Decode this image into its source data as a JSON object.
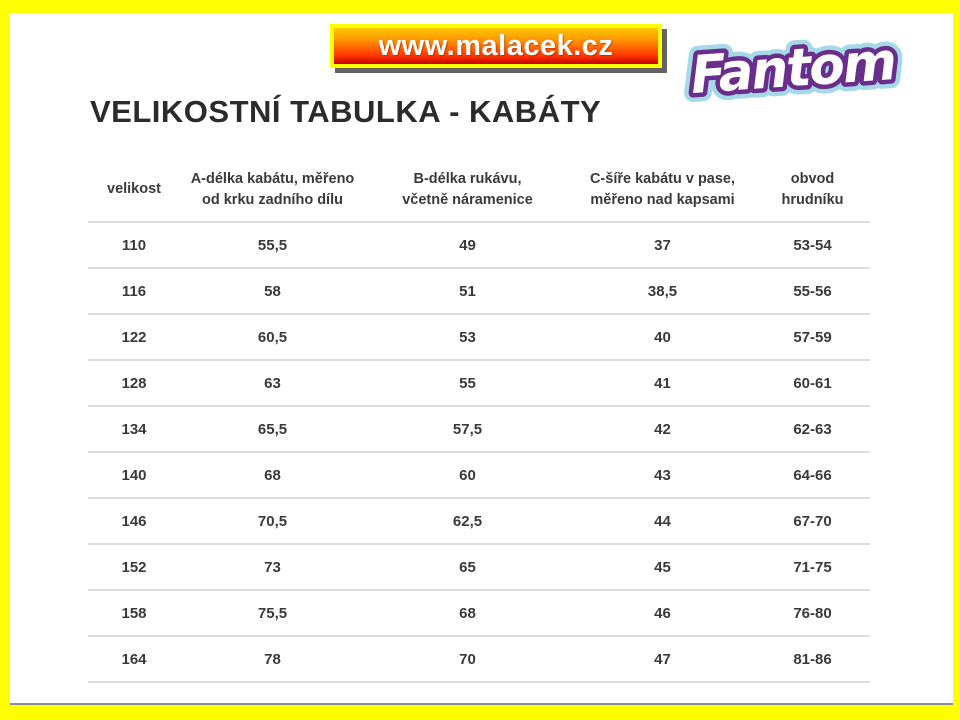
{
  "page": {
    "banner": {
      "url_text": "www.malacek.cz"
    },
    "logo": {
      "text": "Fantom"
    },
    "title": "VELIKOSTNÍ TABULKA - KABÁTY"
  },
  "table": {
    "headers": [
      "velikost",
      "A-délka kabátu, měřeno\nod krku zadního dílu",
      "B-délka rukávu,\nvčetně náramenice",
      "C-šíře kabátu v pase,\nměřeno nad kapsami",
      "obvod\nhrudníku"
    ],
    "rows": [
      [
        "110",
        "55,5",
        "49",
        "37",
        "53-54"
      ],
      [
        "116",
        "58",
        "51",
        "38,5",
        "55-56"
      ],
      [
        "122",
        "60,5",
        "53",
        "40",
        "57-59"
      ],
      [
        "128",
        "63",
        "55",
        "41",
        "60-61"
      ],
      [
        "134",
        "65,5",
        "57,5",
        "42",
        "62-63"
      ],
      [
        "140",
        "68",
        "60",
        "43",
        "64-66"
      ],
      [
        "146",
        "70,5",
        "62,5",
        "44",
        "67-70"
      ],
      [
        "152",
        "73",
        "65",
        "45",
        "71-75"
      ],
      [
        "158",
        "75,5",
        "68",
        "46",
        "76-80"
      ],
      [
        "164",
        "78",
        "70",
        "47",
        "81-86"
      ]
    ]
  },
  "colors": {
    "frame": "#ffff00",
    "banner_gradient_top": "#ffc800",
    "banner_gradient_bottom": "#c40000",
    "banner_shadow": "#464646",
    "logo_purple": "#6b2d8b",
    "logo_light_blue": "#a6d9e8",
    "row_line": "#dcdcdc",
    "text_dark": "#2b2b2b"
  }
}
